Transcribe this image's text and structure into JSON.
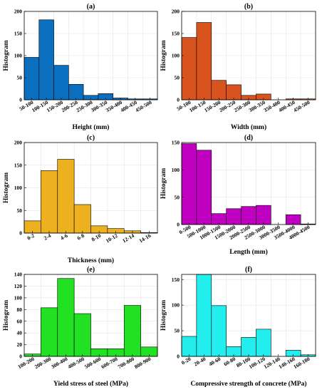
{
  "chart_data": [
    {
      "type": "bar",
      "title": "(a)",
      "xlabel": "Height (mm)",
      "ylabel": "Histogram",
      "ylim": [
        0,
        200
      ],
      "yticks": [
        0,
        50,
        100,
        150,
        200
      ],
      "grid": true,
      "color": "#0B6FBF",
      "categories": [
        "50-100",
        "100-150",
        "150-200",
        "200-250",
        "250-300",
        "300-350",
        "350-400",
        "400-450",
        "450-500"
      ],
      "values": [
        96,
        181,
        78,
        35,
        10,
        14,
        4,
        2,
        2
      ]
    },
    {
      "type": "bar",
      "title": "(b)",
      "xlabel": "Width (mm)",
      "ylabel": "Histogram",
      "ylim": [
        0,
        200
      ],
      "yticks": [
        0,
        50,
        100,
        150,
        200
      ],
      "grid": true,
      "color": "#D9531E",
      "categories": [
        "50-100",
        "100-150",
        "150-200",
        "200-250",
        "250-300",
        "300-350",
        "350-400",
        "400-450",
        "450-500"
      ],
      "values": [
        141,
        175,
        44,
        34,
        10,
        13,
        0,
        2,
        2
      ]
    },
    {
      "type": "bar",
      "title": "(c)",
      "xlabel": "Thickness (mm)",
      "ylabel": "Histogram",
      "ylim": [
        0,
        200
      ],
      "yticks": [
        0,
        50,
        100,
        150,
        200
      ],
      "grid": true,
      "color": "#EDB120",
      "categories": [
        "0-2",
        "2-4",
        "4-6",
        "6-8",
        "8-10",
        "10-12",
        "12-14",
        "14-16"
      ],
      "values": [
        27,
        138,
        163,
        63,
        16,
        10,
        5,
        1
      ]
    },
    {
      "type": "bar",
      "title": "(d)",
      "xlabel": "Length (mm)",
      "ylabel": "Histogram",
      "ylim": [
        0,
        150
      ],
      "yticks": [
        0,
        50,
        100,
        150
      ],
      "grid": true,
      "color": "#C000C0",
      "categories": [
        "0-500",
        "500-1000",
        "1000-1500",
        "1500-2000",
        "2000-2500",
        "2500-3000",
        "3000-3500",
        "3500-4000",
        "4000-4500"
      ],
      "values": [
        148,
        136,
        20,
        29,
        33,
        35,
        0,
        18,
        1
      ]
    },
    {
      "type": "bar",
      "title": "(e)",
      "xlabel": "Yield stress of steel (MPa)",
      "ylabel": "Histogram",
      "ylim": [
        0,
        140
      ],
      "yticks": [
        0,
        20,
        40,
        60,
        80,
        100,
        120,
        140
      ],
      "grid": true,
      "color": "#22E022",
      "categories": [
        "100-200",
        "200-300",
        "300-400",
        "400-500",
        "500-600",
        "600-700",
        "700-800",
        "800-900"
      ],
      "values": [
        4,
        83,
        133,
        73,
        13,
        13,
        87,
        16
      ]
    },
    {
      "type": "bar",
      "title": "(f)",
      "xlabel": "Compressive strength of concrete (MPa)",
      "ylabel": "Histogram",
      "ylim": [
        0,
        160
      ],
      "yticks": [
        0,
        50,
        100,
        150
      ],
      "grid": true,
      "color": "#22EEEE",
      "categories": [
        "0-20",
        "20-40",
        "40-60",
        "60-80",
        "80-100",
        "100-120",
        "120-140",
        "140-160",
        "160-180"
      ],
      "values": [
        39,
        160,
        99,
        19,
        37,
        53,
        0,
        12,
        3
      ]
    }
  ]
}
